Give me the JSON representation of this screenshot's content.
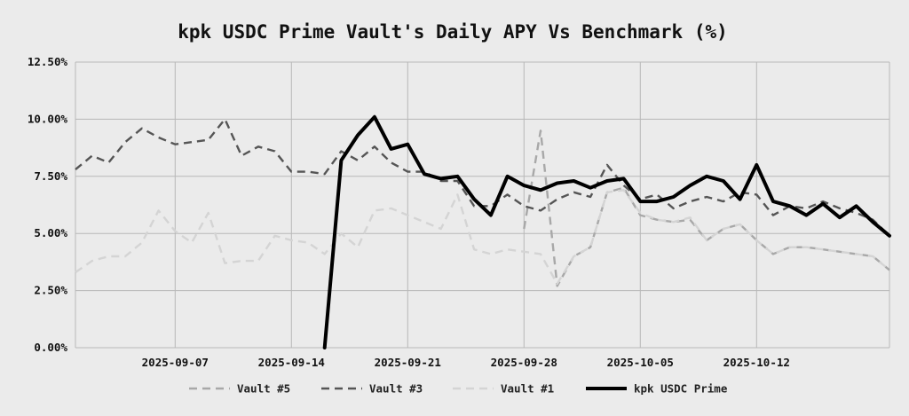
{
  "chart_data": {
    "type": "line",
    "title": "kpk USDC Prime Vault's Daily APY Vs Benchmark (%)",
    "xlabel": "",
    "ylabel": "",
    "ylim": [
      0,
      12.5
    ],
    "y_ticks": [
      0,
      2.5,
      5,
      7.5,
      10,
      12.5
    ],
    "y_tick_labels": [
      "0.00%",
      "2.50%",
      "5.00%",
      "7.50%",
      "10.00%",
      "12.50%"
    ],
    "x_ticks": [
      "2025-09-07",
      "2025-09-14",
      "2025-09-21",
      "2025-09-28",
      "2025-10-05",
      "2025-10-12"
    ],
    "x_range": [
      "2025-09-01",
      "2025-10-20"
    ],
    "grid": true,
    "legend_position": "bottom",
    "x": [
      "2025-09-01",
      "2025-09-02",
      "2025-09-03",
      "2025-09-04",
      "2025-09-05",
      "2025-09-06",
      "2025-09-07",
      "2025-09-08",
      "2025-09-09",
      "2025-09-10",
      "2025-09-11",
      "2025-09-12",
      "2025-09-13",
      "2025-09-14",
      "2025-09-15",
      "2025-09-16",
      "2025-09-17",
      "2025-09-18",
      "2025-09-19",
      "2025-09-20",
      "2025-09-21",
      "2025-09-22",
      "2025-09-23",
      "2025-09-24",
      "2025-09-25",
      "2025-09-26",
      "2025-09-27",
      "2025-09-28",
      "2025-09-29",
      "2025-09-30",
      "2025-10-01",
      "2025-10-02",
      "2025-10-03",
      "2025-10-04",
      "2025-10-05",
      "2025-10-06",
      "2025-10-07",
      "2025-10-08",
      "2025-10-09",
      "2025-10-10",
      "2025-10-11",
      "2025-10-12",
      "2025-10-13",
      "2025-10-14",
      "2025-10-15",
      "2025-10-16",
      "2025-10-17",
      "2025-10-18",
      "2025-10-19",
      "2025-10-20"
    ],
    "series": [
      {
        "name": "Vault #5",
        "color": "#a8a8a8",
        "dash": "dash",
        "values": [
          null,
          null,
          null,
          null,
          null,
          null,
          null,
          null,
          null,
          null,
          null,
          null,
          null,
          null,
          null,
          null,
          null,
          null,
          null,
          null,
          null,
          null,
          null,
          null,
          null,
          null,
          null,
          5.2,
          9.5,
          2.7,
          4.0,
          4.4,
          6.8,
          7.0,
          5.8,
          5.6,
          5.5,
          5.6,
          4.7,
          5.2,
          5.4,
          4.7,
          4.1,
          4.4,
          4.4,
          4.3,
          4.2,
          4.1,
          4.0,
          3.4
        ]
      },
      {
        "name": "Vault #3",
        "color": "#555555",
        "dash": "dash",
        "values": [
          7.8,
          8.4,
          8.1,
          9.0,
          9.6,
          9.2,
          8.9,
          9.0,
          9.1,
          10.0,
          8.4,
          8.8,
          8.6,
          7.7,
          7.7,
          7.6,
          8.6,
          8.2,
          8.8,
          8.1,
          7.7,
          7.7,
          7.3,
          7.3,
          6.2,
          6.2,
          6.7,
          6.2,
          6.0,
          6.5,
          6.8,
          6.6,
          8.0,
          7.1,
          6.5,
          6.7,
          6.1,
          6.4,
          6.6,
          6.4,
          6.8,
          6.7,
          5.8,
          6.2,
          6.1,
          6.4,
          6.1,
          5.9,
          5.6,
          4.9
        ]
      },
      {
        "name": "Vault #1",
        "color": "#d4d4d4",
        "dash": "dash",
        "values": [
          3.3,
          3.8,
          4.0,
          4.0,
          4.6,
          6.0,
          5.1,
          4.6,
          5.9,
          3.7,
          3.8,
          3.8,
          4.9,
          4.7,
          4.6,
          4.1,
          5.0,
          4.4,
          6.0,
          6.1,
          5.8,
          5.5,
          5.2,
          6.7,
          4.3,
          4.1,
          4.3,
          4.2,
          4.1,
          2.8,
          4.0,
          4.4,
          6.8,
          6.9,
          5.9,
          5.6,
          5.5,
          5.7,
          4.7,
          5.2,
          5.4,
          4.7,
          4.1,
          4.4,
          4.4,
          4.3,
          4.2,
          4.1,
          4.0,
          3.4
        ]
      },
      {
        "name": "kpk USDC Prime",
        "color": "#000000",
        "dash": "solid",
        "values": [
          null,
          null,
          null,
          null,
          null,
          null,
          null,
          null,
          null,
          null,
          null,
          null,
          null,
          null,
          null,
          0.0,
          8.2,
          9.3,
          10.1,
          8.7,
          8.9,
          7.6,
          7.4,
          7.5,
          6.5,
          5.8,
          7.5,
          7.1,
          6.9,
          7.2,
          7.3,
          7.0,
          7.3,
          7.4,
          6.4,
          6.4,
          6.6,
          7.1,
          7.5,
          7.3,
          6.5,
          8.0,
          6.4,
          6.2,
          5.8,
          6.3,
          5.7,
          6.2,
          5.5,
          4.9
        ]
      }
    ]
  }
}
